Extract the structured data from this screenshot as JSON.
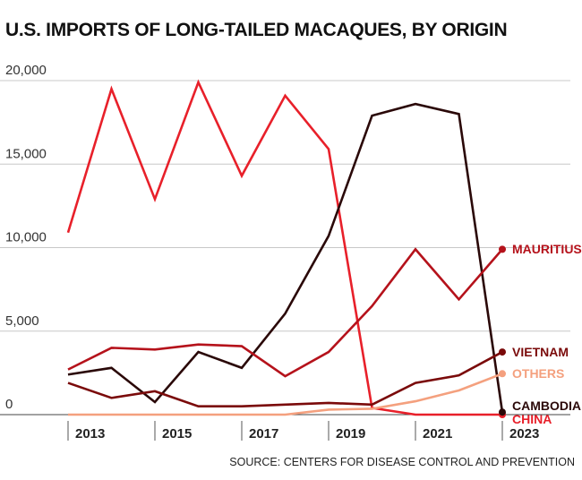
{
  "title": "U.S. IMPORTS OF LONG-TAILED MACAQUES, BY ORIGIN",
  "source": "SOURCE: CENTERS FOR DISEASE CONTROL AND PREVENTION",
  "chart_data": {
    "type": "line",
    "title": "U.S. IMPORTS OF LONG-TAILED MACAQUES, BY ORIGIN",
    "x": [
      2013,
      2014,
      2015,
      2016,
      2017,
      2018,
      2019,
      2020,
      2021,
      2022,
      2023
    ],
    "xtick_labels": [
      "2013",
      "2015",
      "2017",
      "2019",
      "2021",
      "2023"
    ],
    "xticks": [
      2013,
      2015,
      2017,
      2019,
      2021,
      2023
    ],
    "ytick_labels": [
      "0",
      "5,000",
      "10,000",
      "15,000",
      "20,000"
    ],
    "yticks": [
      0,
      5000,
      10000,
      15000,
      20000
    ],
    "ylim": [
      0,
      20000
    ],
    "grid": true,
    "series": [
      {
        "name": "CHINA",
        "color": "#e8202a",
        "values": [
          10900,
          19500,
          12900,
          19900,
          14300,
          19100,
          15900,
          400,
          0,
          0,
          0
        ]
      },
      {
        "name": "CAMBODIA",
        "color": "#2a0808",
        "values": [
          2400,
          2800,
          750,
          3750,
          2800,
          6050,
          10700,
          17900,
          18600,
          18000,
          150
        ]
      },
      {
        "name": "MAURITIUS",
        "color": "#b5121b",
        "values": [
          2700,
          4000,
          3900,
          4200,
          4100,
          2300,
          3750,
          6500,
          9900,
          6900,
          9900
        ]
      },
      {
        "name": "VIETNAM",
        "color": "#7a0a0a",
        "values": [
          1900,
          1000,
          1400,
          500,
          500,
          600,
          700,
          600,
          1900,
          2350,
          3750
        ]
      },
      {
        "name": "OTHERS",
        "color": "#f4a07e",
        "values": [
          0,
          0,
          0,
          0,
          0,
          0,
          300,
          350,
          800,
          1450,
          2450
        ]
      }
    ]
  }
}
